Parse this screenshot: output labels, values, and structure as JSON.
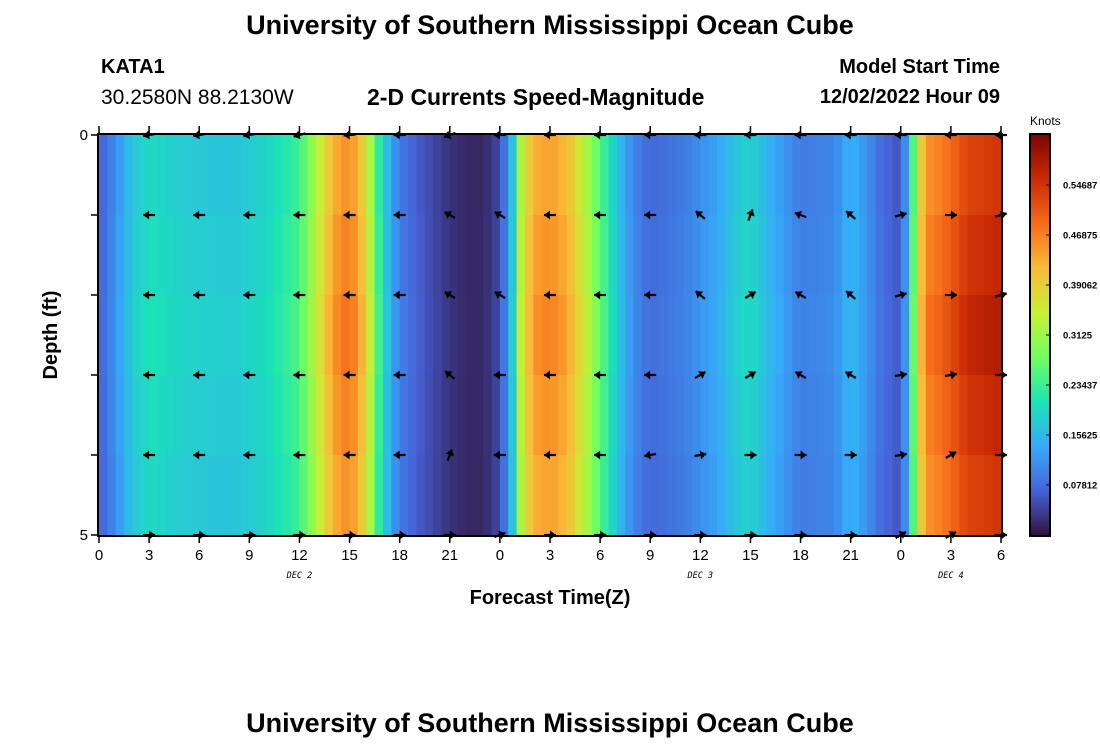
{
  "header": {
    "title": "University of Southern Mississippi Ocean Cube",
    "station_id": "KATA1",
    "station_coords": "30.2580N  88.2130W",
    "subtitle": "2-D Currents Speed-Magnitude",
    "model_label": "Model Start Time",
    "model_time": "12/02/2022 Hour 09"
  },
  "footer": {
    "title": "University of Southern Mississippi Ocean Cube"
  },
  "chart_data": {
    "type": "heatmap",
    "title": "2-D Currents Speed-Magnitude",
    "xlabel": "Forecast Time(Z)",
    "ylabel": "Depth (ft)",
    "x_range_hours": [
      0,
      54
    ],
    "x_tick_labels": [
      "0",
      "3",
      "6",
      "9",
      "12",
      "15",
      "18",
      "21",
      "0",
      "3",
      "6",
      "9",
      "12",
      "15",
      "18",
      "21",
      "0",
      "3",
      "6"
    ],
    "x_ticks_hours": [
      0,
      3,
      6,
      9,
      12,
      15,
      18,
      21,
      24,
      27,
      30,
      33,
      36,
      39,
      42,
      45,
      48,
      51,
      54
    ],
    "day_labels": [
      {
        "label": "DEC 2",
        "hour": 12
      },
      {
        "label": "DEC 3",
        "hour": 36
      },
      {
        "label": "DEC 4",
        "hour": 51
      }
    ],
    "y_range_ft": [
      0,
      5
    ],
    "y_tick_labels": [
      "0",
      "5"
    ],
    "depth_levels_ft": [
      0,
      1,
      2,
      3,
      4,
      5
    ],
    "colorbar": {
      "units": "Knots",
      "min": 0,
      "max": 0.625,
      "tick_values": [
        0.078125,
        0.15625,
        0.234375,
        0.3125,
        0.390625,
        0.46875,
        0.546875
      ],
      "tick_labels": [
        "0.07812",
        "0.15625",
        "0.23437",
        "0.3125",
        "0.39062",
        "0.46875",
        "0.54687"
      ],
      "colors": [
        "#30123b",
        "#4662d7",
        "#36aaf9",
        "#1ae4b6",
        "#72fe5e",
        "#c8ef34",
        "#faba39",
        "#f66b19",
        "#ca2a04",
        "#7a0403"
      ]
    },
    "speed_by_hour_knots": [
      {
        "hour": 0,
        "speed": 0.07
      },
      {
        "hour": 1,
        "speed": 0.12
      },
      {
        "hour": 2,
        "speed": 0.18
      },
      {
        "hour": 3,
        "speed": 0.21
      },
      {
        "hour": 5,
        "speed": 0.19
      },
      {
        "hour": 8,
        "speed": 0.18
      },
      {
        "hour": 10,
        "speed": 0.2
      },
      {
        "hour": 12,
        "speed": 0.25
      },
      {
        "hour": 13,
        "speed": 0.34
      },
      {
        "hour": 14,
        "speed": 0.45
      },
      {
        "hour": 15,
        "speed": 0.49
      },
      {
        "hour": 16,
        "speed": 0.4
      },
      {
        "hour": 16.6,
        "speed": 0.26
      },
      {
        "hour": 17.4,
        "speed": 0.15
      },
      {
        "hour": 18,
        "speed": 0.1
      },
      {
        "hour": 19,
        "speed": 0.07
      },
      {
        "hour": 20,
        "speed": 0.05
      },
      {
        "hour": 21,
        "speed": 0.03
      },
      {
        "hour": 22,
        "speed": 0.02
      },
      {
        "hour": 23,
        "speed": 0.02
      },
      {
        "hour": 24,
        "speed": 0.05
      },
      {
        "hour": 24.7,
        "speed": 0.16
      },
      {
        "hour": 25.3,
        "speed": 0.36
      },
      {
        "hour": 26,
        "speed": 0.45
      },
      {
        "hour": 27,
        "speed": 0.47
      },
      {
        "hour": 28,
        "speed": 0.44
      },
      {
        "hour": 29,
        "speed": 0.36
      },
      {
        "hour": 30,
        "speed": 0.27
      },
      {
        "hour": 31,
        "speed": 0.18
      },
      {
        "hour": 32,
        "speed": 0.11
      },
      {
        "hour": 33,
        "speed": 0.08
      },
      {
        "hour": 35,
        "speed": 0.1
      },
      {
        "hour": 37,
        "speed": 0.14
      },
      {
        "hour": 38,
        "speed": 0.18
      },
      {
        "hour": 39,
        "speed": 0.2
      },
      {
        "hour": 40,
        "speed": 0.16
      },
      {
        "hour": 42,
        "speed": 0.1
      },
      {
        "hour": 44,
        "speed": 0.11
      },
      {
        "hour": 45,
        "speed": 0.16
      },
      {
        "hour": 46,
        "speed": 0.12
      },
      {
        "hour": 47,
        "speed": 0.08
      },
      {
        "hour": 48,
        "speed": 0.06
      },
      {
        "hour": 48.6,
        "speed": 0.2
      },
      {
        "hour": 49,
        "speed": 0.38
      },
      {
        "hour": 49.6,
        "speed": 0.48
      },
      {
        "hour": 50.5,
        "speed": 0.5
      },
      {
        "hour": 52,
        "speed": 0.56
      },
      {
        "hour": 54,
        "speed": 0.58
      }
    ],
    "arrow_hours": [
      3,
      6,
      9,
      12,
      15,
      18,
      21,
      24,
      27,
      30,
      33,
      36,
      39,
      42,
      45,
      48,
      51,
      54
    ],
    "arrow_direction_deg": [
      [
        190,
        190,
        190,
        195,
        185,
        180,
        200,
        180,
        180,
        180,
        180,
        180,
        180,
        180,
        180,
        180,
        180,
        180
      ],
      [
        180,
        180,
        180,
        180,
        180,
        180,
        150,
        150,
        180,
        180,
        180,
        140,
        70,
        160,
        140,
        15,
        0,
        15
      ],
      [
        180,
        180,
        180,
        180,
        180,
        180,
        150,
        150,
        180,
        180,
        180,
        140,
        30,
        150,
        140,
        15,
        0,
        15
      ],
      [
        180,
        180,
        180,
        180,
        180,
        180,
        140,
        180,
        180,
        180,
        180,
        30,
        30,
        150,
        150,
        10,
        10,
        0
      ],
      [
        180,
        180,
        180,
        180,
        180,
        180,
        70,
        180,
        180,
        180,
        190,
        10,
        0,
        0,
        0,
        10,
        30,
        0
      ],
      [
        0,
        0,
        0,
        0,
        0,
        0,
        0,
        20,
        0,
        0,
        0,
        0,
        0,
        0,
        0,
        30,
        30,
        0
      ]
    ]
  }
}
